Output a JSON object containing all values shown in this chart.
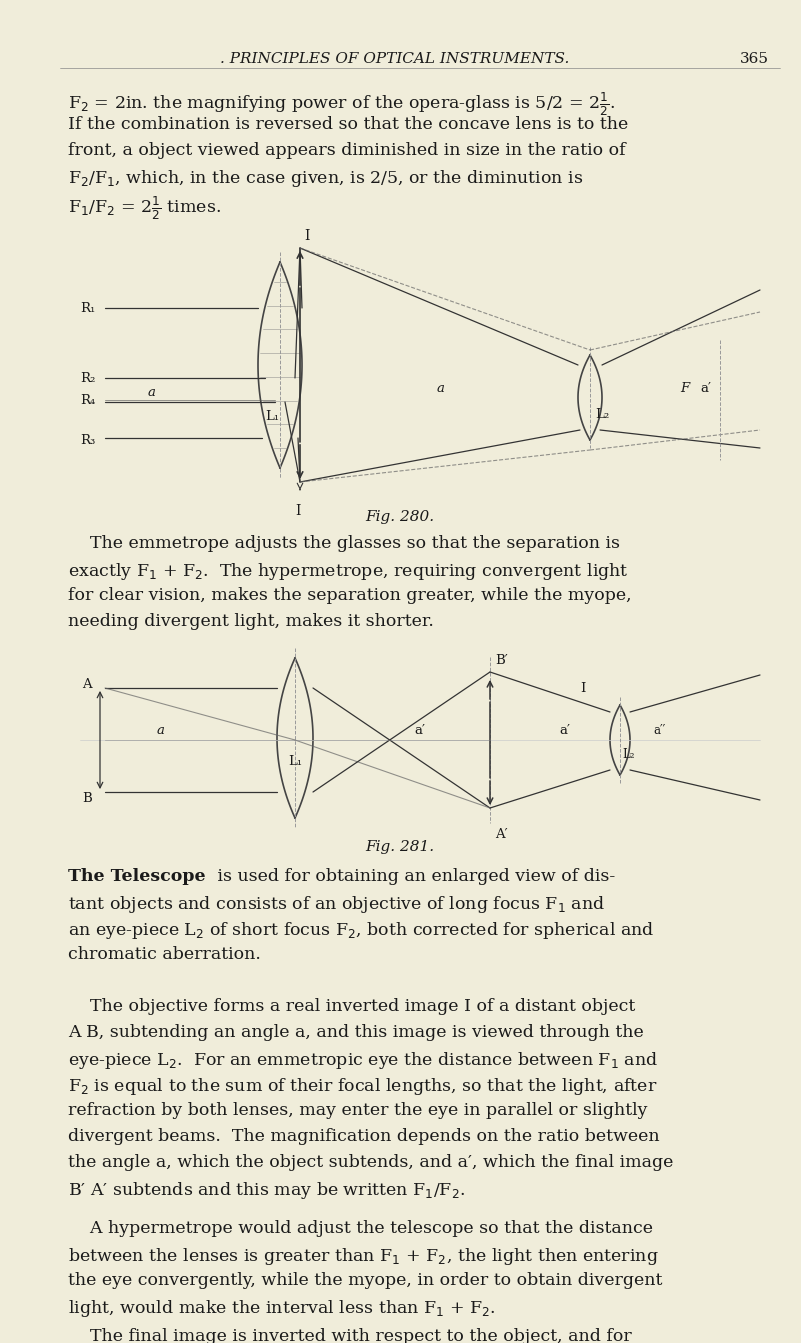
{
  "bg_color": "#f0edda",
  "text_color": "#1a1a1a",
  "page_title": ". PRINCIPLES OF OPTICAL INSTRUMENTS.",
  "page_number": "365",
  "fig280_caption": "Fig. 280.",
  "fig281_caption": "Fig. 281."
}
